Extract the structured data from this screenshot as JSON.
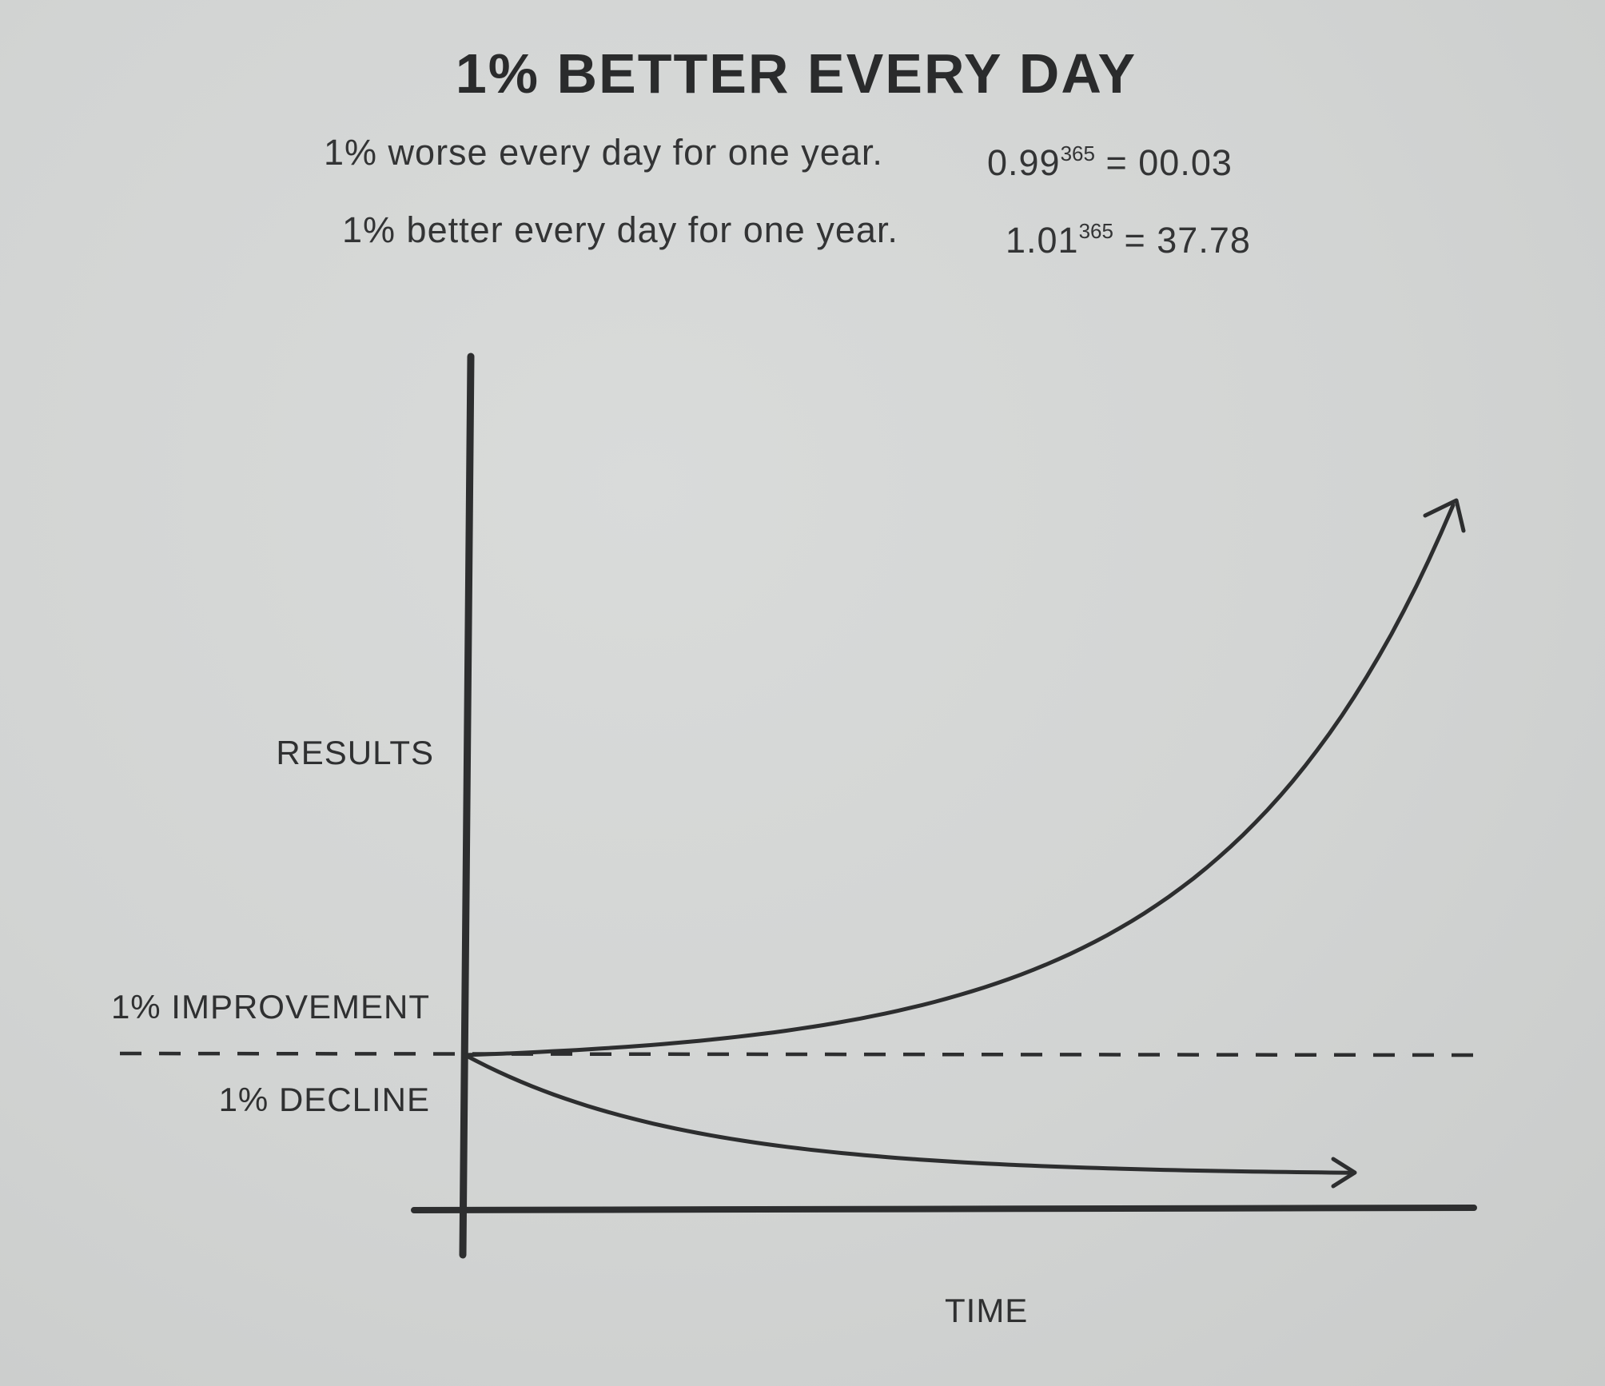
{
  "chart_data": {
    "type": "line",
    "title": "1% BETTER EVERY DAY",
    "annotations": [
      {
        "text": "1% worse every day for one year.",
        "base": "0.99",
        "exponent": "365",
        "result": "= 00.03"
      },
      {
        "text": "1% better every day for one year.",
        "base": "1.01",
        "exponent": "365",
        "result": "= 37.78"
      }
    ],
    "xlabel": "TIME",
    "ylabel": "RESULTS",
    "reference_line": {
      "label_above": "1% IMPROVEMENT",
      "label_below": "1% DECLINE",
      "style": "dashed"
    },
    "series": [
      {
        "curve": "improvement",
        "growth_per_day": 1.01,
        "final_value": 37.78,
        "arrow": true
      },
      {
        "curve": "decline",
        "growth_per_day": 0.99,
        "final_value": 0.03,
        "arrow": true
      }
    ],
    "axis_ticks": false,
    "grid": false
  },
  "colors": {
    "ink": "#2d2e2f",
    "paper": "#d3d5d4"
  }
}
